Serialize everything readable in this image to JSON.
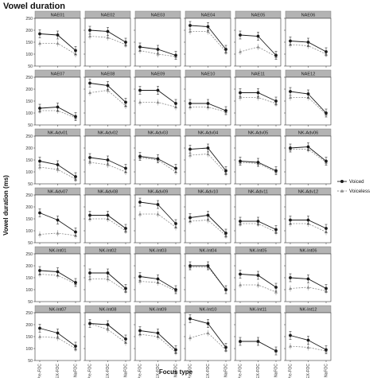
{
  "chart_data": {
    "type": "line",
    "title": "Vowel duration",
    "xlabel": "Focus type",
    "ylabel": "Vowel duration (ms)",
    "x_categories": [
      "Pre-FOC",
      "LEX-FOC",
      "NaFOC"
    ],
    "y_ticks": [
      50,
      100,
      150,
      200,
      250
    ],
    "ylim": [
      50,
      250
    ],
    "grid": false,
    "legend": {
      "position": "right",
      "entries": [
        {
          "name": "Voiced",
          "color": "#1a1a1a",
          "marker": "circle",
          "line": "solid"
        },
        {
          "name": "Voiceless",
          "color": "#8c8c8c",
          "marker": "triangle",
          "line": "dashed"
        }
      ]
    },
    "panels": [
      {
        "label": "NAE01",
        "voiced": [
          185,
          180,
          115
        ],
        "voiceless": [
          145,
          145,
          100
        ]
      },
      {
        "label": "NAE02",
        "voiced": [
          200,
          195,
          150
        ],
        "voiceless": [
          175,
          170,
          140
        ]
      },
      {
        "label": "NAE03",
        "voiced": [
          130,
          120,
          95
        ],
        "voiceless": [
          115,
          100,
          90
        ]
      },
      {
        "label": "NAE04",
        "voiced": [
          220,
          215,
          120
        ],
        "voiceless": [
          195,
          195,
          110
        ]
      },
      {
        "label": "NAE05",
        "voiced": [
          180,
          175,
          95
        ],
        "voiceless": [
          110,
          130,
          90
        ]
      },
      {
        "label": "NAE06",
        "voiced": [
          155,
          150,
          110
        ],
        "voiceless": [
          140,
          135,
          100
        ]
      },
      {
        "label": "NAE07",
        "voiced": [
          120,
          125,
          85
        ],
        "voiceless": [
          110,
          110,
          80
        ]
      },
      {
        "label": "NAE08",
        "voiced": [
          225,
          215,
          145
        ],
        "voiceless": [
          185,
          195,
          130
        ]
      },
      {
        "label": "NAE09",
        "voiced": [
          195,
          195,
          140
        ],
        "voiceless": [
          145,
          145,
          125
        ]
      },
      {
        "label": "NAE10",
        "voiced": [
          140,
          140,
          110
        ],
        "voiceless": [
          125,
          125,
          105
        ]
      },
      {
        "label": "NAE11",
        "voiced": [
          185,
          185,
          150
        ],
        "voiceless": [
          165,
          165,
          140
        ]
      },
      {
        "label": "NAE12",
        "voiced": [
          190,
          180,
          100
        ],
        "voiceless": [
          165,
          165,
          95
        ]
      },
      {
        "label": "NK-Adv01",
        "voiced": [
          145,
          130,
          80
        ],
        "voiceless": [
          120,
          110,
          70
        ]
      },
      {
        "label": "NK-Adv02",
        "voiced": [
          160,
          150,
          115
        ],
        "voiceless": [
          140,
          130,
          100
        ]
      },
      {
        "label": "NK-Adv03",
        "voiced": [
          165,
          155,
          115
        ],
        "voiceless": [
          160,
          150,
          100
        ]
      },
      {
        "label": "NK-Adv04",
        "voiced": [
          195,
          200,
          105
        ],
        "voiceless": [
          170,
          175,
          95
        ]
      },
      {
        "label": "NK-Adv05",
        "voiced": [
          145,
          140,
          105
        ],
        "voiceless": [
          140,
          135,
          100
        ]
      },
      {
        "label": "NK-Adv06",
        "voiced": [
          200,
          205,
          145
        ],
        "voiceless": [
          195,
          195,
          140
        ]
      },
      {
        "label": "NK-Adv07",
        "voiced": [
          175,
          145,
          95
        ],
        "voiceless": [
          85,
          90,
          80
        ]
      },
      {
        "label": "NK-Adv08",
        "voiced": [
          165,
          165,
          110
        ],
        "voiceless": [
          150,
          150,
          100
        ]
      },
      {
        "label": "NK-Adv09",
        "voiced": [
          220,
          210,
          130
        ],
        "voiceless": [
          170,
          170,
          115
        ]
      },
      {
        "label": "NK-Adv10",
        "voiced": [
          155,
          165,
          90
        ],
        "voiceless": [
          140,
          145,
          80
        ]
      },
      {
        "label": "NK-Adv11",
        "voiced": [
          140,
          140,
          105
        ],
        "voiceless": [
          130,
          130,
          95
        ]
      },
      {
        "label": "NK-Adv12",
        "voiced": [
          145,
          145,
          110
        ],
        "voiceless": [
          130,
          130,
          95
        ]
      },
      {
        "label": "NK-Int01",
        "voiced": [
          180,
          175,
          130
        ],
        "voiceless": [
          165,
          160,
          125
        ]
      },
      {
        "label": "NK-Int02",
        "voiced": [
          170,
          170,
          105
        ],
        "voiceless": [
          145,
          145,
          95
        ]
      },
      {
        "label": "NK-Int03",
        "voiced": [
          155,
          145,
          100
        ],
        "voiceless": [
          135,
          130,
          95
        ]
      },
      {
        "label": "NK-Int04",
        "voiced": [
          200,
          200,
          100
        ],
        "voiceless": [
          195,
          195,
          100
        ]
      },
      {
        "label": "NK-Int05",
        "voiced": [
          165,
          160,
          110
        ],
        "voiceless": [
          120,
          120,
          90
        ]
      },
      {
        "label": "NK-Int06",
        "voiced": [
          150,
          145,
          105
        ],
        "voiceless": [
          105,
          110,
          95
        ]
      },
      {
        "label": "NK-Int07",
        "voiced": [
          185,
          165,
          110
        ],
        "voiceless": [
          150,
          145,
          100
        ]
      },
      {
        "label": "NK-Int08",
        "voiced": [
          205,
          200,
          140
        ],
        "voiceless": [
          205,
          180,
          125
        ]
      },
      {
        "label": "NK-Int09",
        "voiced": [
          175,
          165,
          95
        ],
        "voiceless": [
          160,
          150,
          85
        ]
      },
      {
        "label": "NK-Int10",
        "voiced": [
          225,
          205,
          105
        ],
        "voiceless": [
          145,
          165,
          95
        ]
      },
      {
        "label": "NK-Int11",
        "voiced": [
          130,
          130,
          90
        ],
        "voiceless": [
          130,
          130,
          90
        ]
      },
      {
        "label": "NK-Int12",
        "voiced": [
          155,
          135,
          95
        ],
        "voiceless": [
          110,
          105,
          90
        ]
      }
    ]
  }
}
